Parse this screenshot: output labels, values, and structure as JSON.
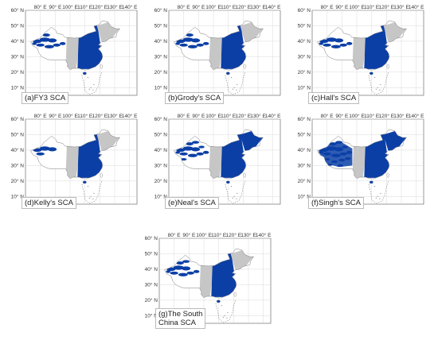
{
  "colors": {
    "snow": "#0b3fa6",
    "land": "#ffffff",
    "region_band": "#c6c6c6",
    "border": "#7a7a7a",
    "grid": "#d0d0d0",
    "frame": "#555555"
  },
  "axes": {
    "lon_ticks": [
      "80° E",
      "90° E",
      "100° E",
      "110° E",
      "120° E",
      "130° E",
      "140° E"
    ],
    "lat_ticks": [
      "60° N",
      "50° N",
      "40° N",
      "30° N",
      "20° N",
      "10° N"
    ],
    "lon_range": [
      70,
      145
    ],
    "lat_range": [
      5,
      60
    ]
  },
  "panels": [
    {
      "label": "(a)FY3 SCA",
      "snow_level": 0.45
    },
    {
      "label": "(b)Grody's SCA",
      "snow_level": 0.45
    },
    {
      "label": "(c)Hall's SCA",
      "snow_level": 0.4
    },
    {
      "label": "(d)Kelly's SCA",
      "snow_level": 0.2
    },
    {
      "label": "(e)Neal's SCA",
      "snow_level": 0.6
    },
    {
      "label": "(f)Singh's SCA",
      "snow_level": 0.85
    },
    {
      "label": "(g)The South\nChina SCA",
      "snow_level": 0.5
    }
  ]
}
